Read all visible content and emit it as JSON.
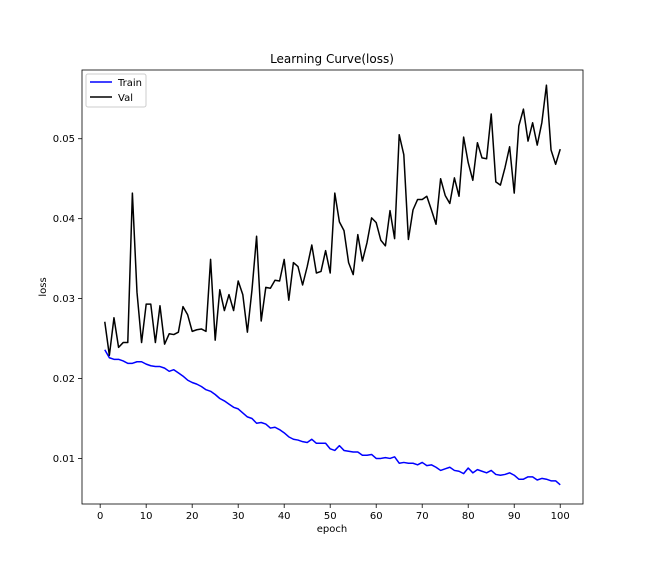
{
  "chart_data": {
    "type": "line",
    "title": "Learning Curve(loss)",
    "xlabel": "epoch",
    "ylabel": "loss",
    "xlim": [
      -3.95,
      104.95
    ],
    "ylim": [
      0.0043,
      0.0586
    ],
    "xticks": [
      0,
      10,
      20,
      30,
      40,
      50,
      60,
      70,
      80,
      90,
      100
    ],
    "yticks": [
      0.01,
      0.02,
      0.03,
      0.04,
      0.05
    ],
    "ytick_labels": [
      "0.01",
      "0.02",
      "0.03",
      "0.04",
      "0.05"
    ],
    "grid": false,
    "legend_position": "top-left",
    "x": [
      1,
      2,
      3,
      4,
      5,
      6,
      7,
      8,
      9,
      10,
      11,
      12,
      13,
      14,
      15,
      16,
      17,
      18,
      19,
      20,
      21,
      22,
      23,
      24,
      25,
      26,
      27,
      28,
      29,
      30,
      31,
      32,
      33,
      34,
      35,
      36,
      37,
      38,
      39,
      40,
      41,
      42,
      43,
      44,
      45,
      46,
      47,
      48,
      49,
      50,
      51,
      52,
      53,
      54,
      55,
      56,
      57,
      58,
      59,
      60,
      61,
      62,
      63,
      64,
      65,
      66,
      67,
      68,
      69,
      70,
      71,
      72,
      73,
      74,
      75,
      76,
      77,
      78,
      79,
      80,
      81,
      82,
      83,
      84,
      85,
      86,
      87,
      88,
      89,
      90,
      91,
      92,
      93,
      94,
      95,
      96,
      97,
      98,
      99,
      100
    ],
    "series": [
      {
        "name": "Train",
        "color": "#0000ff",
        "values": [
          0.0236,
          0.0226,
          0.0224,
          0.0224,
          0.0222,
          0.0219,
          0.0219,
          0.0221,
          0.0221,
          0.0218,
          0.0216,
          0.0215,
          0.0215,
          0.0213,
          0.0209,
          0.0211,
          0.0207,
          0.0203,
          0.0198,
          0.0195,
          0.0193,
          0.019,
          0.0186,
          0.0184,
          0.018,
          0.0175,
          0.0172,
          0.0168,
          0.0164,
          0.0162,
          0.0157,
          0.0152,
          0.015,
          0.0144,
          0.0145,
          0.0143,
          0.0138,
          0.0139,
          0.0136,
          0.0132,
          0.0127,
          0.0124,
          0.0123,
          0.0121,
          0.012,
          0.0124,
          0.0119,
          0.0119,
          0.0119,
          0.0112,
          0.011,
          0.0116,
          0.011,
          0.0109,
          0.0108,
          0.0108,
          0.0104,
          0.0104,
          0.0105,
          0.01,
          0.01,
          0.0101,
          0.01,
          0.0102,
          0.0094,
          0.0095,
          0.0094,
          0.0094,
          0.0092,
          0.0095,
          0.0091,
          0.0092,
          0.0089,
          0.0085,
          0.0087,
          0.0089,
          0.0085,
          0.0084,
          0.0081,
          0.0088,
          0.0082,
          0.0086,
          0.0084,
          0.0082,
          0.0085,
          0.008,
          0.0079,
          0.008,
          0.0082,
          0.0079,
          0.0074,
          0.0074,
          0.0077,
          0.0077,
          0.0073,
          0.0075,
          0.0074,
          0.0072,
          0.0072,
          0.0067
        ]
      },
      {
        "name": "Val",
        "color": "#000000",
        "values": [
          0.0271,
          0.0229,
          0.0276,
          0.0239,
          0.0245,
          0.0245,
          0.0432,
          0.0308,
          0.0245,
          0.0293,
          0.0293,
          0.0245,
          0.0291,
          0.0243,
          0.0256,
          0.0255,
          0.0258,
          0.029,
          0.028,
          0.0259,
          0.0261,
          0.0262,
          0.0259,
          0.0349,
          0.0248,
          0.0311,
          0.0285,
          0.0305,
          0.0285,
          0.0322,
          0.0305,
          0.0258,
          0.0311,
          0.0378,
          0.0272,
          0.0314,
          0.0313,
          0.0323,
          0.0322,
          0.0349,
          0.0298,
          0.0345,
          0.034,
          0.0317,
          0.034,
          0.0367,
          0.0332,
          0.0334,
          0.036,
          0.0332,
          0.0432,
          0.0396,
          0.0385,
          0.0345,
          0.033,
          0.038,
          0.0347,
          0.037,
          0.0401,
          0.0395,
          0.0373,
          0.0366,
          0.041,
          0.0375,
          0.0505,
          0.048,
          0.0374,
          0.0411,
          0.0424,
          0.0424,
          0.0428,
          0.0411,
          0.0393,
          0.045,
          0.0429,
          0.0419,
          0.0451,
          0.0428,
          0.0502,
          0.047,
          0.0448,
          0.0495,
          0.0476,
          0.0475,
          0.0531,
          0.0446,
          0.0442,
          0.0464,
          0.049,
          0.0432,
          0.0516,
          0.0537,
          0.0497,
          0.052,
          0.0492,
          0.052,
          0.0567,
          0.0486,
          0.0468,
          0.0487
        ]
      }
    ]
  }
}
